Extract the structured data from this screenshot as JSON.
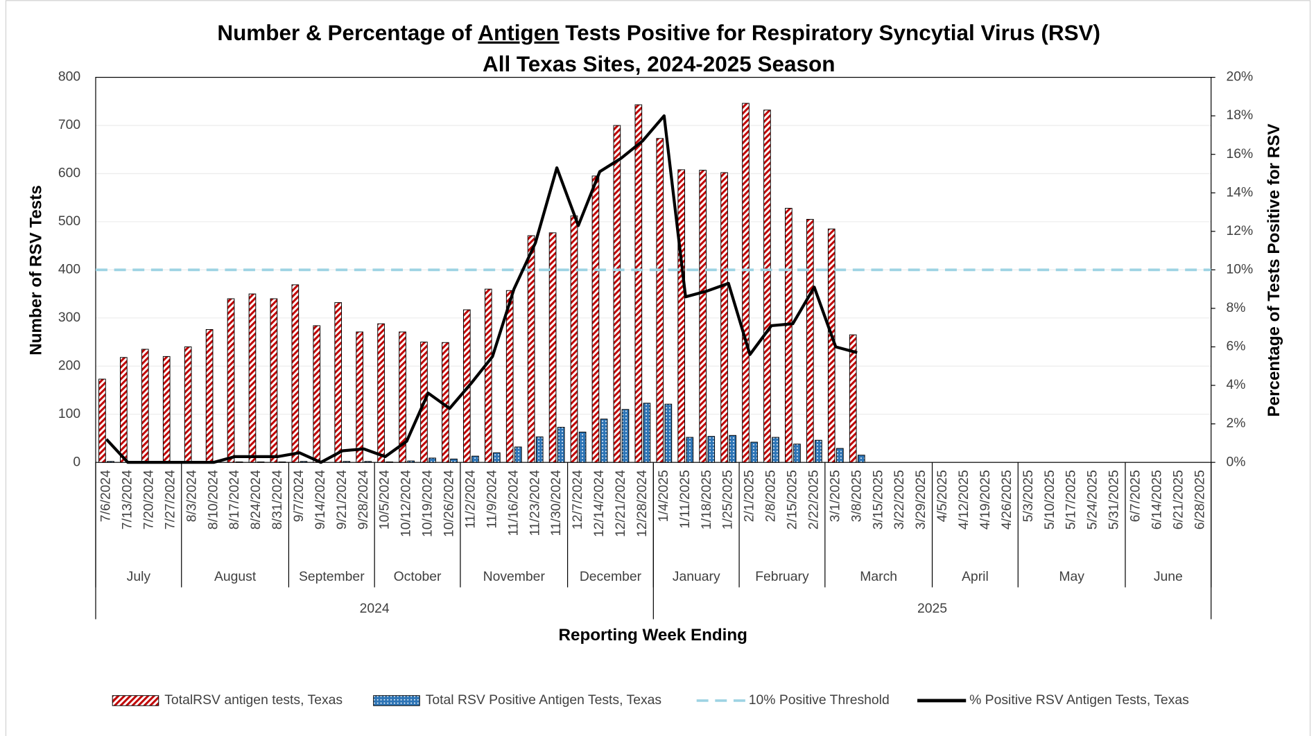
{
  "chart_data": {
    "type": "bar-line",
    "title": [
      "Number & Percentage of ",
      "Antigen",
      " Tests Positive for Respiratory Syncytial Virus (RSV)"
    ],
    "subtitle": "All Texas Sites, 2024-2025 Season",
    "y_label": "Number of RSV Tests",
    "y2_label": "Percentage of Tests Positive for RSV",
    "x_label": "Reporting Week Ending",
    "categories": [
      "7/6/2024",
      "7/13/2024",
      "7/20/2024",
      "7/27/2024",
      "8/3/2024",
      "8/10/2024",
      "8/17/2024",
      "8/24/2024",
      "8/31/2024",
      "9/7/2024",
      "9/14/2024",
      "9/21/2024",
      "9/28/2024",
      "10/5/2024",
      "10/12/2024",
      "10/19/2024",
      "10/26/2024",
      "11/2/2024",
      "11/9/2024",
      "11/16/2024",
      "11/23/2024",
      "11/30/2024",
      "12/7/2024",
      "12/14/2024",
      "12/21/2024",
      "12/28/2024",
      "1/4/2025",
      "1/11/2025",
      "1/18/2025",
      "1/25/2025",
      "2/1/2025",
      "2/8/2025",
      "2/15/2025",
      "2/22/2025",
      "3/1/2025",
      "3/8/2025",
      "3/15/2025",
      "3/22/2025",
      "3/29/2025",
      "4/5/2025",
      "4/12/2025",
      "4/19/2025",
      "4/26/2025",
      "5/3/2025",
      "5/10/2025",
      "5/17/2025",
      "5/24/2025",
      "5/31/2025",
      "6/7/2025",
      "6/14/2025",
      "6/21/2025",
      "6/28/2025"
    ],
    "months": [
      {
        "label": "July",
        "span": 4
      },
      {
        "label": "August",
        "span": 5
      },
      {
        "label": "September",
        "span": 4
      },
      {
        "label": "October",
        "span": 4
      },
      {
        "label": "November",
        "span": 5
      },
      {
        "label": "December",
        "span": 4
      },
      {
        "label": "January",
        "span": 4
      },
      {
        "label": "February",
        "span": 4
      },
      {
        "label": "March",
        "span": 5
      },
      {
        "label": "April",
        "span": 4
      },
      {
        "label": "May",
        "span": 5
      },
      {
        "label": "June",
        "span": 4
      }
    ],
    "years": [
      {
        "label": "2024",
        "span": 26
      },
      {
        "label": "2025",
        "span": 26
      }
    ],
    "series": [
      {
        "name": "TotalRSV antigen tests, Texas",
        "type": "bar",
        "pattern": "hatch",
        "color": "#c00000",
        "values": [
          173,
          218,
          235,
          220,
          240,
          276,
          340,
          350,
          340,
          369,
          284,
          332,
          271,
          288,
          271,
          250,
          249,
          317,
          360,
          357,
          471,
          477,
          512,
          595,
          700,
          743,
          673,
          608,
          607,
          602,
          746,
          732,
          528,
          505,
          485,
          265,
          null,
          null,
          null,
          null,
          null,
          null,
          null,
          null,
          null,
          null,
          null,
          null,
          null,
          null,
          null,
          null
        ]
      },
      {
        "name": "Total RSV Positive Antigen Tests, Texas",
        "type": "bar",
        "pattern": "dots",
        "color": "#2e75b6",
        "values": [
          2,
          0,
          0,
          0,
          0,
          0,
          1,
          1,
          1,
          2,
          0,
          2,
          2,
          1,
          3,
          9,
          7,
          13,
          20,
          32,
          53,
          73,
          63,
          90,
          110,
          123,
          121,
          52,
          54,
          56,
          42,
          52,
          38,
          46,
          29,
          15,
          null,
          null,
          null,
          null,
          null,
          null,
          null,
          null,
          null,
          null,
          null,
          null,
          null,
          null,
          null,
          null
        ]
      },
      {
        "name": "10% Positive Threshold",
        "type": "threshold",
        "axis": "y2",
        "color": "#9dd3e3",
        "value": 10
      },
      {
        "name": "% Positive RSV Antigen Tests, Texas",
        "type": "line",
        "axis": "y2",
        "color": "#000000",
        "values": [
          1.2,
          0,
          0,
          0,
          0,
          0,
          0.3,
          0.3,
          0.3,
          0.5,
          0,
          0.6,
          0.7,
          0.3,
          1.1,
          3.6,
          2.8,
          4.1,
          5.5,
          9.0,
          11.4,
          15.3,
          12.3,
          15.1,
          15.8,
          16.7,
          18.0,
          8.6,
          8.9,
          9.3,
          5.6,
          7.1,
          7.2,
          9.1,
          6.0,
          5.7,
          null,
          null,
          null,
          null,
          null,
          null,
          null,
          null,
          null,
          null,
          null,
          null,
          null,
          null,
          null,
          null
        ]
      }
    ],
    "ylim": [
      0,
      800
    ],
    "yticks": [
      0,
      100,
      200,
      300,
      400,
      500,
      600,
      700,
      800
    ],
    "y2lim": [
      0,
      20
    ],
    "y2ticks": [
      {
        "value": 0,
        "label": "0%"
      },
      {
        "value": 2,
        "label": "2%"
      },
      {
        "value": 4,
        "label": "4%"
      },
      {
        "value": 6,
        "label": "6%"
      },
      {
        "value": 8,
        "label": "8%"
      },
      {
        "value": 10,
        "label": "10%"
      },
      {
        "value": 12,
        "label": "12%"
      },
      {
        "value": 14,
        "label": "14%"
      },
      {
        "value": 16,
        "label": "16%"
      },
      {
        "value": 18,
        "label": "18%"
      },
      {
        "value": 20,
        "label": "20%"
      }
    ],
    "grid": true,
    "legend": "bottom"
  }
}
